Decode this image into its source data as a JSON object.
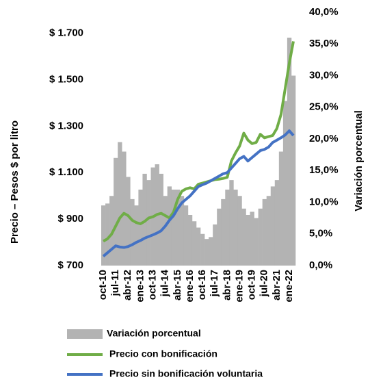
{
  "chart_data": {
    "type": "bar-line",
    "y_label": "Precio – Pesos $ por litro",
    "y2_label": "Variación porcentual",
    "categories": [
      "oct-10",
      null,
      null,
      "jul-11",
      null,
      null,
      "abr-12",
      null,
      null,
      "ene-13",
      null,
      null,
      "oct-13",
      null,
      null,
      "jul-14",
      null,
      null,
      "abr-15",
      null,
      null,
      "ene-16",
      null,
      null,
      "oct-16",
      null,
      null,
      "jul-17",
      null,
      null,
      "abr-18",
      null,
      null,
      "ene-19",
      null,
      null,
      "oct-19",
      null,
      null,
      "jul-20",
      null,
      null,
      "abr-21",
      null,
      null,
      "ene-22",
      null
    ],
    "ylim": [
      700,
      1790
    ],
    "yticks": [
      {
        "value": 700,
        "label": "$ 700"
      },
      {
        "value": 900,
        "label": "$ 900"
      },
      {
        "value": 1100,
        "label": "$ 1.100"
      },
      {
        "value": 1300,
        "label": "$ 1.300"
      },
      {
        "value": 1500,
        "label": "$ 1.500"
      },
      {
        "value": 1700,
        "label": "$ 1.700"
      }
    ],
    "y2lim": [
      0,
      40
    ],
    "y2ticks": [
      {
        "value": 0,
        "label": "0,0%"
      },
      {
        "value": 5,
        "label": "5,0%"
      },
      {
        "value": 10,
        "label": "10,0%"
      },
      {
        "value": 15,
        "label": "15,0%"
      },
      {
        "value": 20,
        "label": "20,0%"
      },
      {
        "value": 25,
        "label": "25,0%"
      },
      {
        "value": 30,
        "label": "30,0%"
      },
      {
        "value": 35,
        "label": "35,0%"
      },
      {
        "value": 40,
        "label": "40,0%"
      }
    ],
    "series": [
      {
        "name": "Variación porcentual",
        "type": "bar",
        "axis": "y2",
        "color": "#b3b3b3",
        "values": [
          9.5,
          9.8,
          11,
          17,
          19.5,
          18,
          14,
          10.5,
          9.5,
          12,
          14.5,
          13.5,
          15.5,
          16,
          14.5,
          11,
          12.5,
          12,
          12,
          11,
          9.5,
          8,
          7,
          6,
          5,
          4.2,
          4.5,
          6.5,
          9,
          10.5,
          12,
          13.5,
          12,
          11,
          9,
          8,
          8.5,
          7.5,
          9,
          10.5,
          11,
          12.5,
          13.5,
          18,
          26,
          36,
          30
        ]
      },
      {
        "name": "Precio con bonificación",
        "type": "line",
        "color": "#70ad47",
        "values": [
          805,
          815,
          835,
          870,
          905,
          925,
          915,
          895,
          885,
          880,
          890,
          905,
          910,
          920,
          925,
          915,
          905,
          930,
          985,
          1020,
          1030,
          1035,
          1030,
          1050,
          1055,
          1060,
          1065,
          1070,
          1072,
          1075,
          1080,
          1150,
          1185,
          1215,
          1270,
          1240,
          1225,
          1230,
          1265,
          1250,
          1255,
          1260,
          1290,
          1350,
          1460,
          1570,
          1665
        ]
      },
      {
        "name": "Precio sin bonificación voluntaria",
        "type": "line",
        "color": "#4472c4",
        "values": [
          740,
          755,
          770,
          785,
          780,
          778,
          782,
          790,
          800,
          808,
          818,
          825,
          832,
          840,
          850,
          870,
          895,
          915,
          945,
          970,
          985,
          1000,
          1020,
          1040,
          1048,
          1055,
          1065,
          1075,
          1085,
          1095,
          1100,
          1120,
          1140,
          1160,
          1170,
          1150,
          1165,
          1180,
          1195,
          1200,
          1210,
          1230,
          1240,
          1250,
          1262,
          1280,
          1260
        ]
      }
    ]
  }
}
